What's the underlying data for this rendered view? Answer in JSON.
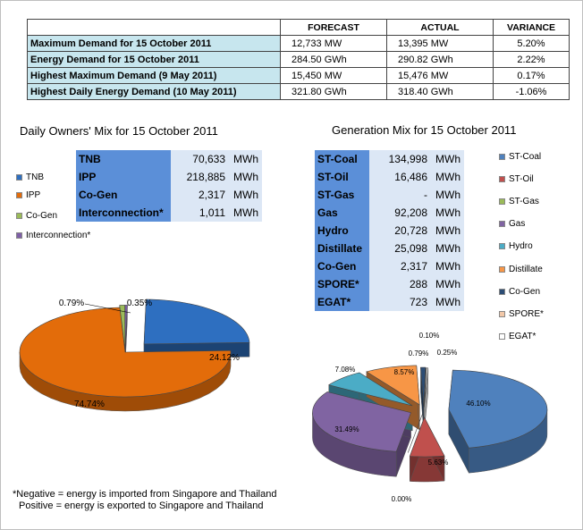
{
  "summary": {
    "headers": [
      "",
      "FORECAST",
      "ACTUAL",
      "VARIANCE"
    ],
    "rows": [
      {
        "label": "Maximum Demand for 15 October 2011",
        "forecast": "12,733  MW",
        "actual": "13,395  MW",
        "variance": "5.20%"
      },
      {
        "label": "Energy Demand for 15 October 2011",
        "forecast": "284.50  GWh",
        "actual": "290.82  GWh",
        "variance": "2.22%"
      },
      {
        "label": "Highest Maximum Demand (9 May 2011)",
        "forecast": "15,450  MW",
        "actual": "15,476  MW",
        "variance": "0.17%"
      },
      {
        "label": "Highest Daily Energy Demand (10 May 2011)",
        "forecast": "321.80  GWh",
        "actual": "318.40  GWh",
        "variance": "-1.06%"
      }
    ]
  },
  "owners": {
    "title": "Daily Owners' Mix for 15 October 2011",
    "table": [
      {
        "name": "TNB",
        "value": "70,633",
        "unit": "MWh"
      },
      {
        "name": "IPP",
        "value": "218,885",
        "unit": "MWh"
      },
      {
        "name": "Co-Gen",
        "value": "2,317",
        "unit": "MWh"
      },
      {
        "name": "Interconnection*",
        "value": "1,011",
        "unit": "MWh"
      }
    ],
    "legend": [
      {
        "label": "TNB",
        "color": "#2e6fc0"
      },
      {
        "label": "IPP",
        "color": "#e36c0a"
      },
      {
        "label": "Co-Gen",
        "color": "#9bbb59"
      },
      {
        "label": "Interconnection*",
        "color": "#7f5fa7"
      }
    ]
  },
  "generation": {
    "title": "Generation Mix for 15 October 2011",
    "table": [
      {
        "name": "ST-Coal",
        "value": "134,998",
        "unit": "MWh"
      },
      {
        "name": "ST-Oil",
        "value": "16,486",
        "unit": "MWh"
      },
      {
        "name": "ST-Gas",
        "value": "-",
        "unit": "MWh"
      },
      {
        "name": "Gas",
        "value": "92,208",
        "unit": "MWh"
      },
      {
        "name": "Hydro",
        "value": "20,728",
        "unit": "MWh"
      },
      {
        "name": "Distillate",
        "value": "25,098",
        "unit": "MWh"
      },
      {
        "name": "Co-Gen",
        "value": "2,317",
        "unit": "MWh"
      },
      {
        "name": "SPORE*",
        "value": "288",
        "unit": "MWh"
      },
      {
        "name": "EGAT*",
        "value": "723",
        "unit": "MWh"
      }
    ],
    "legend": [
      {
        "label": "ST-Coal",
        "color": "#4f81bd"
      },
      {
        "label": "ST-Oil",
        "color": "#c0504d"
      },
      {
        "label": "ST-Gas",
        "color": "#9bbb59"
      },
      {
        "label": "Gas",
        "color": "#8064a2"
      },
      {
        "label": "Hydro",
        "color": "#4bacc6"
      },
      {
        "label": "Distillate",
        "color": "#f79646"
      },
      {
        "label": "Co-Gen",
        "color": "#2c4d75"
      },
      {
        "label": "SPORE*",
        "color": "#f2c8a8"
      },
      {
        "label": "EGAT*",
        "color": "#ffffff"
      }
    ]
  },
  "note": {
    "line1": "*Negative = energy is imported from Singapore and Thailand",
    "line2": "Positive = energy is exported to Singapore and Thailand"
  },
  "chart_data": [
    {
      "type": "pie",
      "title": "Daily Owners' Mix for 15 October 2011",
      "labels": [
        "TNB",
        "IPP",
        "Co-Gen",
        "Interconnection*"
      ],
      "values": [
        24.12,
        74.74,
        0.79,
        0.35
      ],
      "data_labels": [
        "24.12%",
        "74.74%",
        "0.79%",
        "0.35%"
      ],
      "colors": [
        "#2e6fc0",
        "#e36c0a",
        "#9bbb59",
        "#7f5fa7"
      ],
      "legend": "left"
    },
    {
      "type": "pie",
      "title": "Generation Mix for 15 October 2011",
      "labels": [
        "ST-Coal",
        "ST-Oil",
        "ST-Gas",
        "Gas",
        "Hydro",
        "Distillate",
        "Co-Gen",
        "SPORE*",
        "EGAT*"
      ],
      "values": [
        46.1,
        5.63,
        0.0,
        31.49,
        7.08,
        8.57,
        0.79,
        0.1,
        0.25
      ],
      "data_labels": [
        "46.10%",
        "5.63%",
        "0.00%",
        "31.49%",
        "7.08%",
        "8.57%",
        "0.79%",
        "0.10%",
        "0.25%"
      ],
      "colors": [
        "#4f81bd",
        "#c0504d",
        "#9bbb59",
        "#8064a2",
        "#4bacc6",
        "#f79646",
        "#2c4d75",
        "#f2c8a8",
        "#ffffff"
      ],
      "legend": "right"
    }
  ]
}
